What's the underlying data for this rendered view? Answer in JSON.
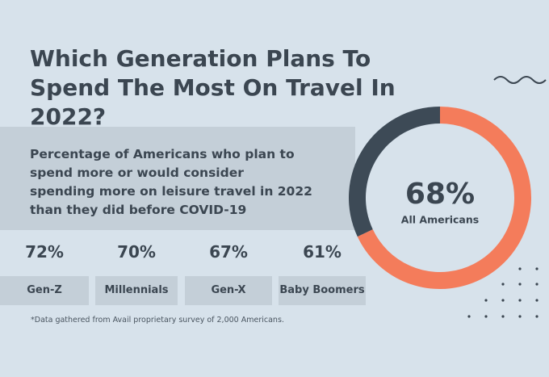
{
  "title": "Which Generation Plans To Spend The Most On Travel In 2022?",
  "subtitle": "Percentage of Americans who plan to spend more or would consider spending more on leisure travel in 2022 than they did before COVID-19",
  "stats": [
    {
      "value": "72%",
      "label": "Gen-Z"
    },
    {
      "value": "70%",
      "label": "Millennials"
    },
    {
      "value": "67%",
      "label": "Gen-X"
    },
    {
      "value": "61%",
      "label": "Baby Boomers"
    }
  ],
  "footnote": "*Data gathered from Avail proprietary survey of 2,000 Americans.",
  "chart_data": {
    "type": "pie",
    "values": [
      68,
      32
    ],
    "value_labels": [
      "68%",
      null
    ],
    "categories": [
      "All Americans",
      null
    ],
    "colors": [
      "#f47c5b",
      "#3d4a56"
    ],
    "donut": true
  }
}
